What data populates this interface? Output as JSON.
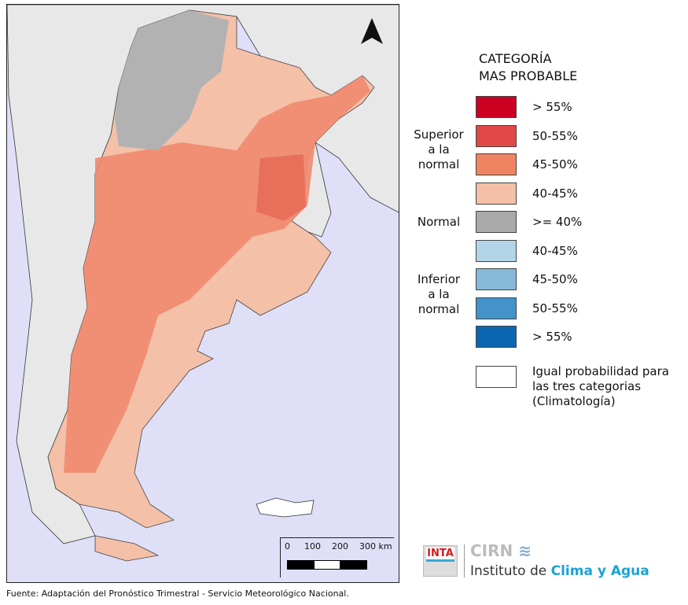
{
  "legend": {
    "title_line1": "CATEGORÍA",
    "title_line2": "MAS PROBABLE",
    "groups": [
      {
        "l1": "Superior",
        "l2": "a la",
        "l3": "normal"
      },
      {
        "l1": "Normal"
      },
      {
        "l1": "Inferior",
        "l2": "a la",
        "l3": "normal"
      }
    ],
    "items": [
      {
        "label": "> 55%",
        "color": "#cc0020"
      },
      {
        "label": "50-55%",
        "color": "#e04848"
      },
      {
        "label": "45-50%",
        "color": "#f08462"
      },
      {
        "label": "40-45%",
        "color": "#f4c0a8"
      },
      {
        "label": ">= 40%",
        "color": "#aaaaaa"
      },
      {
        "label": "40-45%",
        "color": "#b3d5e8"
      },
      {
        "label": "45-50%",
        "color": "#85b8d9"
      },
      {
        "label": "50-55%",
        "color": "#4392c9"
      },
      {
        "label": "> 55%",
        "color": "#0a66b0"
      }
    ],
    "equal_l1": "Igual probabilidad para",
    "equal_l2": "las tres categorias",
    "equal_l3": "(Climatología)"
  },
  "scale": {
    "labels": [
      "0",
      "100",
      "200",
      "300 km"
    ]
  },
  "logo": {
    "inta": "INTA",
    "cirn": "CIRN",
    "inst_a": "Instituto de ",
    "inst_b": "Clima y Agua"
  },
  "footer": "Fuente: Adaptación del Pronóstico Trimestral - Servicio Meteorológico Nacional."
}
